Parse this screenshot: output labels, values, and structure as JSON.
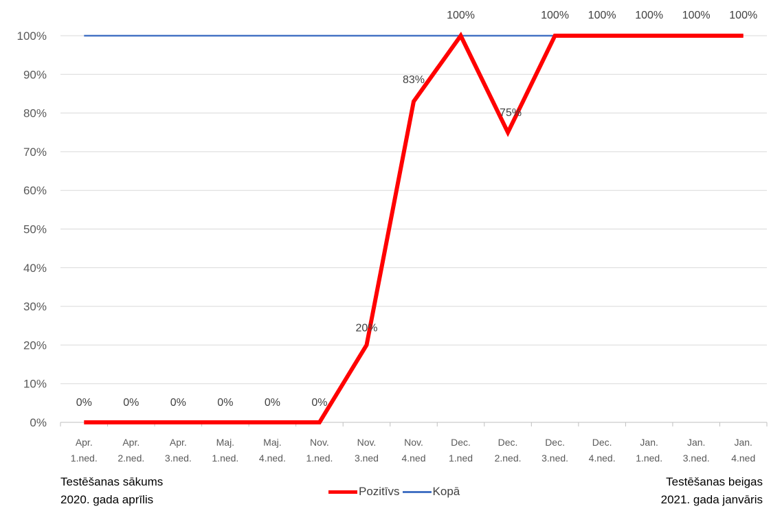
{
  "chart_data": {
    "type": "line",
    "categories": [
      [
        "Apr.",
        "1.ned."
      ],
      [
        "Apr.",
        "2.ned."
      ],
      [
        "Apr.",
        "3.ned."
      ],
      [
        "Maj.",
        "1.ned."
      ],
      [
        "Maj.",
        "4.ned."
      ],
      [
        "Nov.",
        "1.ned."
      ],
      [
        "Nov.",
        "3.ned"
      ],
      [
        "Nov.",
        "4.ned"
      ],
      [
        "Dec.",
        "1.ned"
      ],
      [
        "Dec.",
        "2.ned."
      ],
      [
        "Dec.",
        "3.ned."
      ],
      [
        "Dec.",
        "4.ned."
      ],
      [
        "Jan.",
        "1.ned."
      ],
      [
        "Jan.",
        "3.ned."
      ],
      [
        "Jan.",
        "4.ned"
      ]
    ],
    "series": [
      {
        "name": "Pozitīvs",
        "color": "#ff0000",
        "values": [
          0,
          0,
          0,
          0,
          0,
          0,
          20,
          83,
          100,
          75,
          100,
          100,
          100,
          100,
          100
        ],
        "labels": [
          "0%",
          "0%",
          "0%",
          "0%",
          "0%",
          "0%",
          "20%",
          "83%",
          "100%",
          "75%",
          "100%",
          "100%",
          "100%",
          "100%",
          "100%"
        ]
      },
      {
        "name": "Kopā",
        "color": "#4472c4",
        "values": [
          100,
          100,
          100,
          100,
          100,
          100,
          100,
          100,
          100,
          100,
          100,
          100,
          100,
          100,
          100
        ]
      }
    ],
    "yticks": [
      "0%",
      "10%",
      "20%",
      "30%",
      "40%",
      "50%",
      "60%",
      "70%",
      "80%",
      "90%",
      "100%"
    ],
    "ylim": [
      0,
      100
    ],
    "grid": true,
    "legend": "bottom-center"
  },
  "footer": {
    "left_line1": "Testēšanas sākums",
    "left_line2": "2020. gada aprīlis",
    "right_line1": "Testēšanas beigas",
    "right_line2": "2021. gada janvāris"
  }
}
